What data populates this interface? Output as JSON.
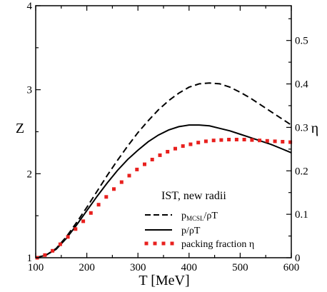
{
  "chart_data": {
    "type": "line",
    "xlabel": "T [MeV]",
    "ylabel_left": "Z",
    "ylabel_right": "η",
    "xlim": [
      100,
      600
    ],
    "ylim_left": [
      1,
      4
    ],
    "ylim_right": [
      0,
      0.58
    ],
    "x_ticks": [
      100,
      200,
      300,
      400,
      500,
      600
    ],
    "y_ticks_left": [
      1,
      2,
      3,
      4
    ],
    "y_ticks_right": [
      0,
      0.1,
      0.2,
      0.3,
      0.4,
      0.5
    ],
    "x_tick_labels": [
      "100",
      "200",
      "300",
      "400",
      "500",
      "600"
    ],
    "y_tick_labels_left": [
      "1",
      "2",
      "3",
      "4"
    ],
    "y_tick_labels_right": [
      "0",
      "0.1",
      "0.2",
      "0.3",
      "0.4",
      "0.5"
    ],
    "legend": {
      "title": "IST, new radii",
      "placement": "bottom-right",
      "entries": [
        {
          "main": "p",
          "sub": "MCSL",
          "tail": "/ρT",
          "style": "dashed"
        },
        {
          "main": "p/ρT",
          "sub": "",
          "tail": "",
          "style": "solid"
        },
        {
          "main": "packing fraction η",
          "sub": "",
          "tail": "",
          "style": "dotted-red"
        }
      ]
    },
    "series": [
      {
        "axis": "left",
        "style": "dashed",
        "color": "#000000",
        "x": [
          100,
          120,
          140,
          160,
          180,
          200,
          220,
          240,
          260,
          280,
          300,
          320,
          340,
          360,
          380,
          400,
          420,
          440,
          460,
          480,
          500,
          520,
          540,
          560,
          580,
          600
        ],
        "y": [
          1.0,
          1.03,
          1.11,
          1.25,
          1.42,
          1.6,
          1.79,
          1.98,
          2.16,
          2.33,
          2.49,
          2.63,
          2.76,
          2.87,
          2.96,
          3.03,
          3.07,
          3.08,
          3.07,
          3.03,
          2.97,
          2.9,
          2.82,
          2.74,
          2.66,
          2.58
        ]
      },
      {
        "axis": "left",
        "style": "solid",
        "color": "#000000",
        "x": [
          100,
          120,
          140,
          160,
          180,
          200,
          220,
          240,
          260,
          280,
          300,
          320,
          340,
          360,
          380,
          400,
          420,
          440,
          460,
          480,
          500,
          520,
          540,
          560,
          580,
          600
        ],
        "y": [
          1.0,
          1.03,
          1.1,
          1.23,
          1.39,
          1.56,
          1.73,
          1.89,
          2.04,
          2.17,
          2.28,
          2.38,
          2.46,
          2.52,
          2.56,
          2.58,
          2.58,
          2.57,
          2.54,
          2.51,
          2.47,
          2.43,
          2.39,
          2.35,
          2.3,
          2.25
        ]
      },
      {
        "axis": "right",
        "style": "dotted",
        "color": "#e8201e",
        "x": [
          103,
          118,
          133,
          148,
          163,
          178,
          193,
          208,
          223,
          238,
          253,
          268,
          283,
          298,
          313,
          328,
          343,
          358,
          373,
          388,
          403,
          418,
          433,
          448,
          463,
          478,
          493,
          508,
          523,
          538,
          553,
          568,
          583,
          598
        ],
        "y": [
          0.0,
          0.006,
          0.016,
          0.031,
          0.048,
          0.066,
          0.084,
          0.103,
          0.122,
          0.14,
          0.158,
          0.174,
          0.189,
          0.203,
          0.215,
          0.226,
          0.236,
          0.244,
          0.251,
          0.257,
          0.261,
          0.265,
          0.268,
          0.27,
          0.271,
          0.272,
          0.272,
          0.272,
          0.271,
          0.27,
          0.269,
          0.268,
          0.267,
          0.266
        ]
      }
    ]
  }
}
